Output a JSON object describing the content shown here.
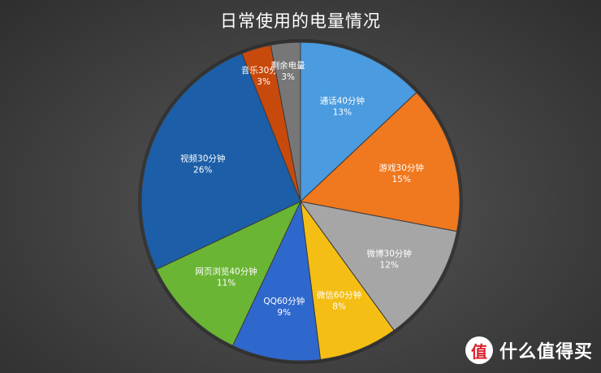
{
  "chart_data": {
    "type": "pie",
    "title": "日常使用的电量情况",
    "slices": [
      {
        "label": "通话40分钟",
        "value": 13,
        "display": "13%",
        "color": "#4a9be0"
      },
      {
        "label": "游戏30分钟",
        "value": 15,
        "display": "15%",
        "color": "#f0781e"
      },
      {
        "label": "微博30分钟",
        "value": 12,
        "display": "12%",
        "color": "#a6a6a6"
      },
      {
        "label": "微信60分钟",
        "value": 8,
        "display": "8%",
        "color": "#f5be14"
      },
      {
        "label": "QQ60分钟",
        "value": 9,
        "display": "9%",
        "color": "#2f68cc"
      },
      {
        "label": "网页浏览40分钟",
        "value": 11,
        "display": "11%",
        "color": "#6ab534"
      },
      {
        "label": "视频30分钟",
        "value": 26,
        "display": "26%",
        "color": "#1c5fa8"
      },
      {
        "label": "音乐30分钟",
        "value": 3,
        "display": "3%",
        "color": "#c8490c"
      },
      {
        "label": "剩余电量",
        "value": 3,
        "display": "3%",
        "color": "#777777"
      }
    ]
  },
  "watermark": {
    "logo_glyph": "值",
    "text": "什么值得买"
  }
}
